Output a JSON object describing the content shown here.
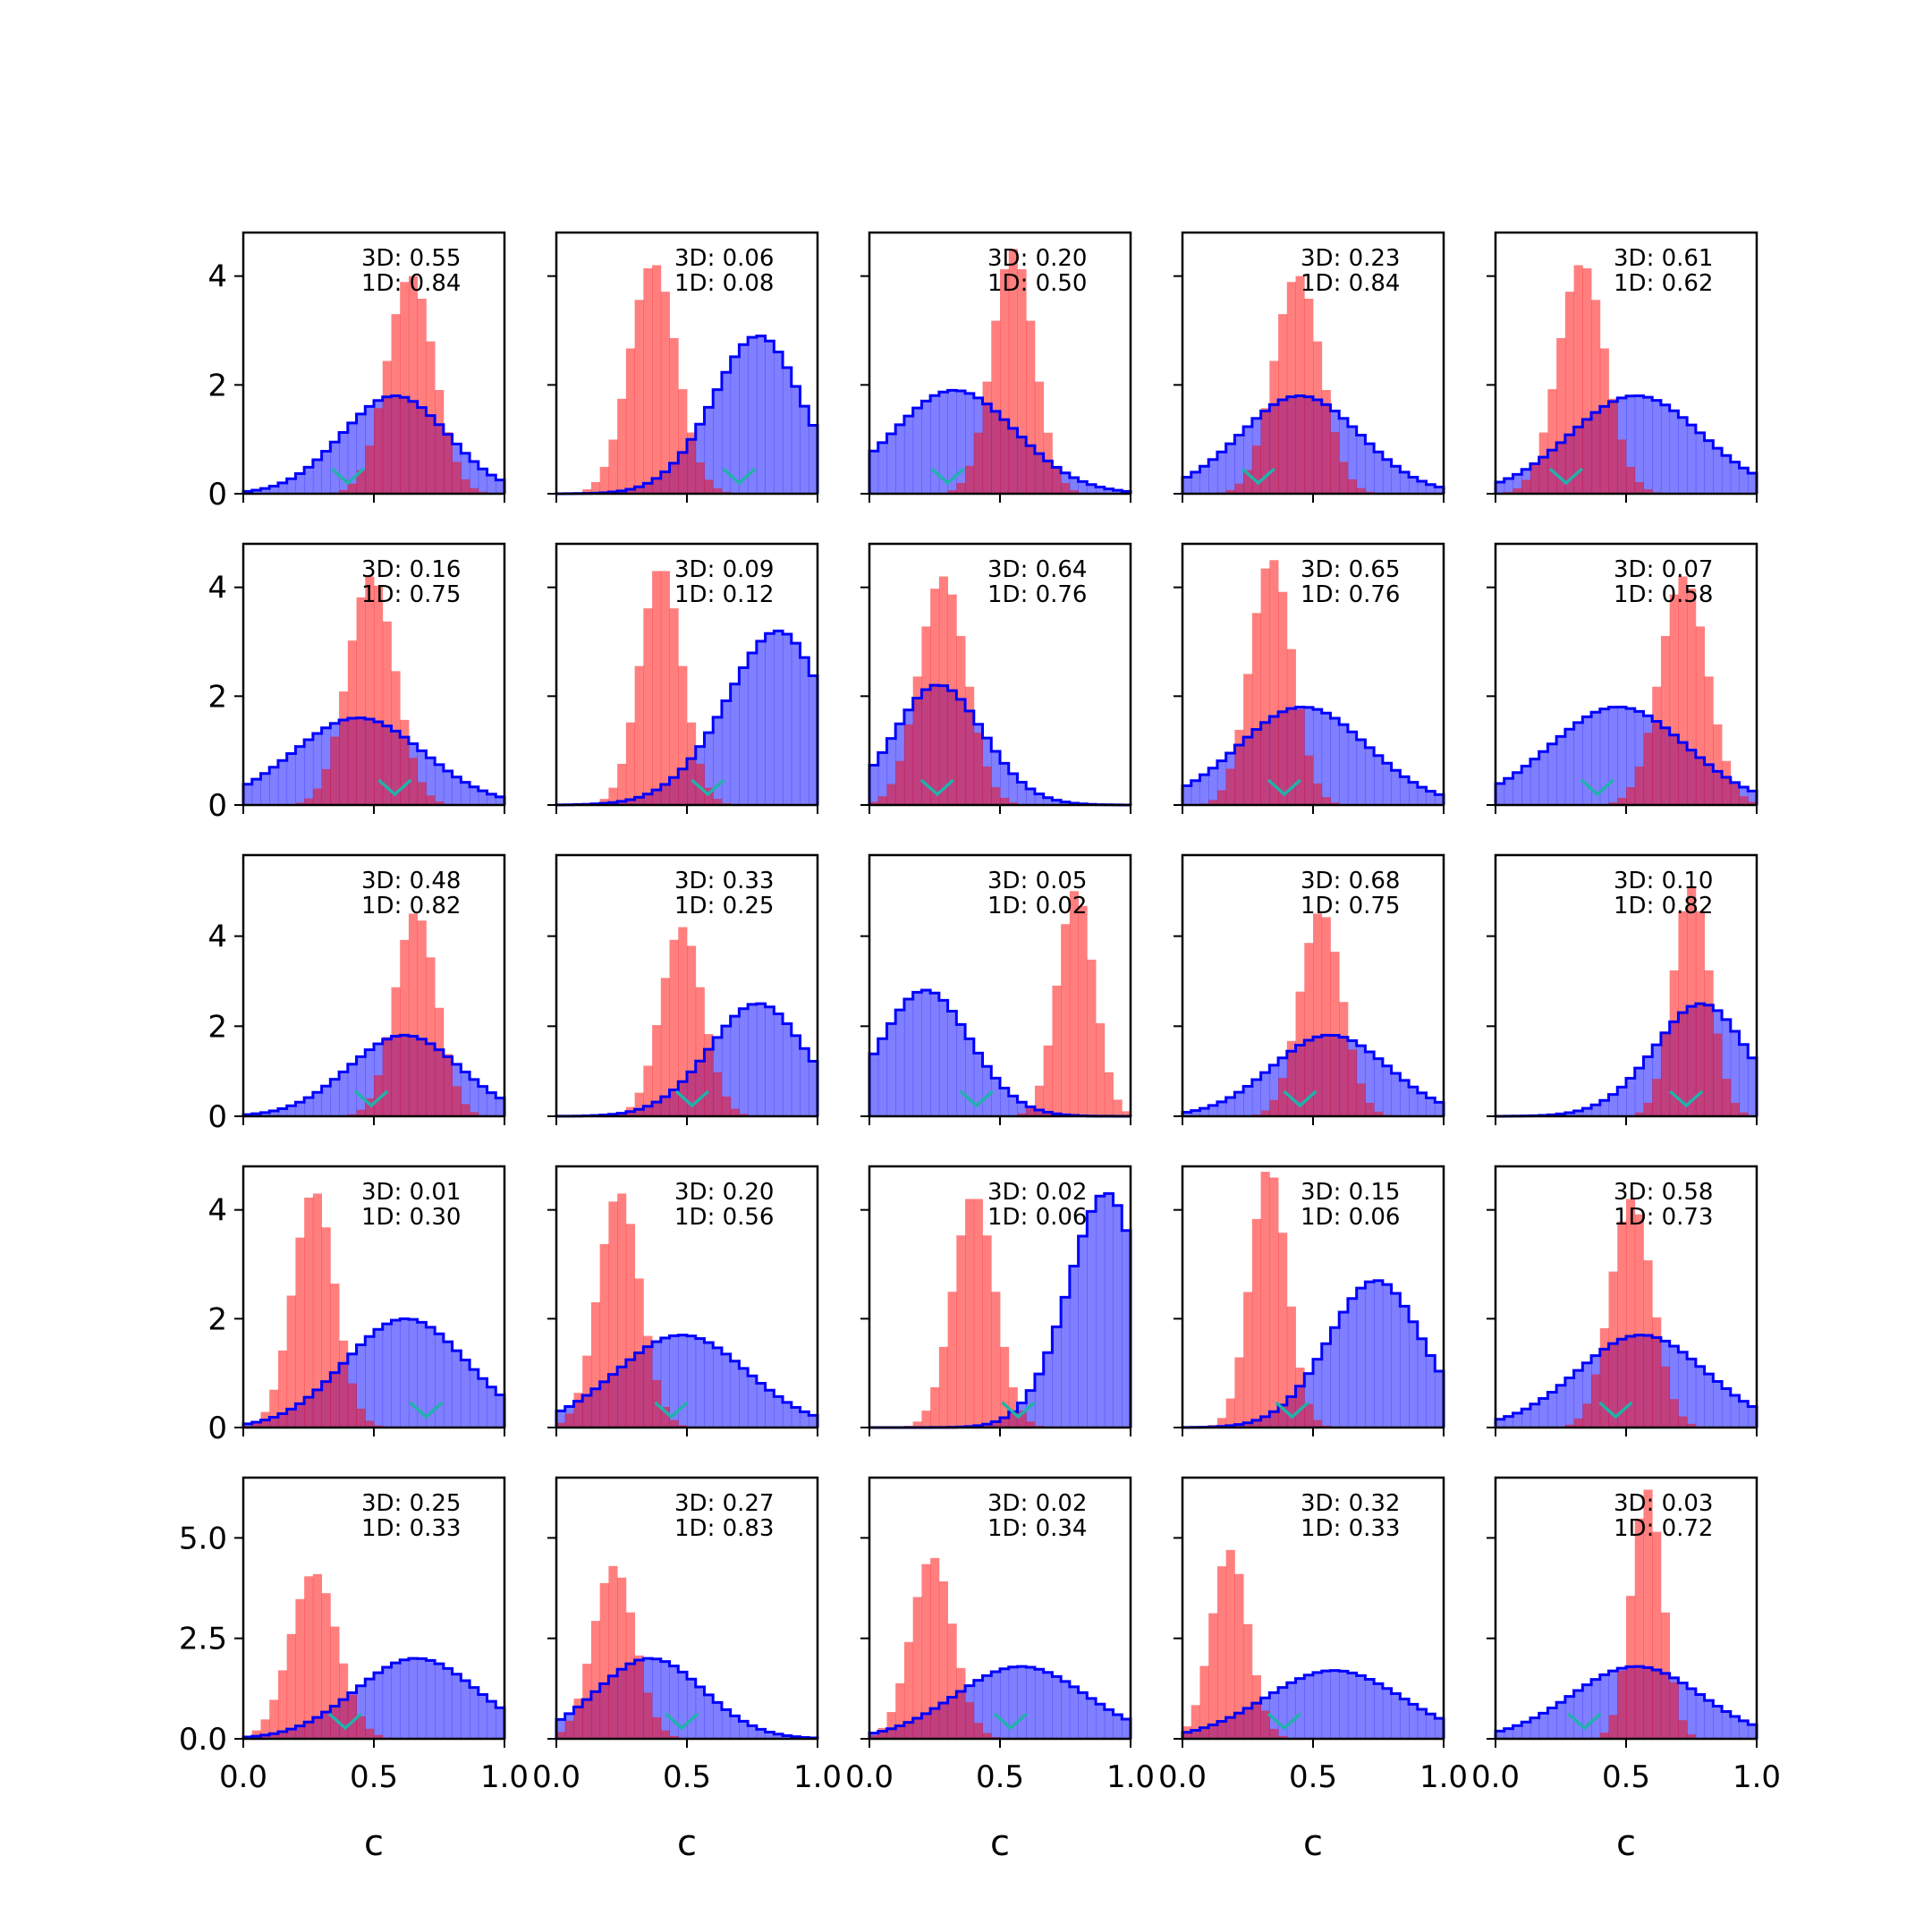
{
  "figure": {
    "background": "#ffffff",
    "colors": {
      "wide": "#0000ff",
      "narrow": "#ff0000",
      "marker": "#20b2aa"
    },
    "xlabel": "c"
  },
  "chart_data": {
    "type": "histogram-grid",
    "rows": 5,
    "cols": 5,
    "x_range": [
      0.0,
      1.0
    ],
    "x_ticks": [
      "0.0",
      "0.5",
      "1.0"
    ],
    "y_axes": [
      {
        "row": 0,
        "ylim": [
          0,
          4.8
        ],
        "ticks": [
          0,
          2,
          4
        ],
        "tick_labels": [
          "0",
          "2",
          "4"
        ]
      },
      {
        "row": 1,
        "ylim": [
          0,
          4.8
        ],
        "ticks": [
          0,
          2,
          4
        ],
        "tick_labels": [
          "0",
          "2",
          "4"
        ]
      },
      {
        "row": 2,
        "ylim": [
          0,
          5.8
        ],
        "ticks": [
          0,
          2,
          4
        ],
        "tick_labels": [
          "0",
          "2",
          "4"
        ]
      },
      {
        "row": 3,
        "ylim": [
          0,
          4.8
        ],
        "ticks": [
          0,
          2,
          4
        ],
        "tick_labels": [
          "0",
          "2",
          "4"
        ]
      },
      {
        "row": 4,
        "ylim": [
          0,
          6.5
        ],
        "ticks": [
          0,
          2.5,
          5.0
        ],
        "tick_labels": [
          "0.0",
          "2.5",
          "5.0"
        ]
      }
    ],
    "panels": [
      {
        "row": 0,
        "col": 0,
        "label_3d": "3D: 0.55",
        "label_1d": "1D: 0.84",
        "wide": {
          "mean": 0.66,
          "sd": 0.22,
          "peak": 1.8,
          "skew": -0.5
        },
        "narrow": {
          "mean": 0.64,
          "sd": 0.09,
          "peak": 4.0
        },
        "marker_x": 0.4
      },
      {
        "row": 0,
        "col": 1,
        "label_3d": "3D: 0.06",
        "label_1d": "1D: 0.08",
        "wide": {
          "mean": 0.88,
          "sd": 0.21,
          "peak": 2.9,
          "skew": -1.0
        },
        "narrow": {
          "mean": 0.37,
          "sd": 0.09,
          "peak": 4.2
        },
        "marker_x": 0.7
      },
      {
        "row": 0,
        "col": 2,
        "label_3d": "3D: 0.20",
        "label_1d": "1D: 0.50",
        "wide": {
          "mean": 0.22,
          "sd": 0.26,
          "peak": 1.9,
          "skew": 0.6
        },
        "narrow": {
          "mean": 0.55,
          "sd": 0.08,
          "peak": 4.5
        },
        "marker_x": 0.3
      },
      {
        "row": 0,
        "col": 3,
        "label_3d": "3D: 0.23",
        "label_1d": "1D: 0.84",
        "wide": {
          "mean": 0.45,
          "sd": 0.23,
          "peak": 1.8,
          "skew": 0.0
        },
        "narrow": {
          "mean": 0.44,
          "sd": 0.09,
          "peak": 4.0
        },
        "marker_x": 0.29
      },
      {
        "row": 0,
        "col": 4,
        "label_3d": "3D: 0.61",
        "label_1d": "1D: 0.62",
        "wide": {
          "mean": 0.6,
          "sd": 0.26,
          "peak": 1.8,
          "skew": -0.3
        },
        "narrow": {
          "mean": 0.33,
          "sd": 0.09,
          "peak": 4.2
        },
        "marker_x": 0.27
      },
      {
        "row": 1,
        "col": 0,
        "label_3d": "3D: 0.16",
        "label_1d": "1D: 0.75",
        "wide": {
          "mean": 0.44,
          "sd": 0.25,
          "peak": 1.6,
          "skew": 0.0
        },
        "narrow": {
          "mean": 0.49,
          "sd": 0.09,
          "peak": 4.2
        },
        "marker_x": 0.58
      },
      {
        "row": 1,
        "col": 1,
        "label_3d": "3D: 0.09",
        "label_1d": "1D: 0.12",
        "wide": {
          "mean": 0.98,
          "sd": 0.25,
          "peak": 3.2,
          "skew": -1.3
        },
        "narrow": {
          "mean": 0.4,
          "sd": 0.08,
          "peak": 4.3
        },
        "marker_x": 0.58
      },
      {
        "row": 1,
        "col": 2,
        "label_3d": "3D: 0.64",
        "label_1d": "1D: 0.76",
        "wide": {
          "mean": 0.17,
          "sd": 0.2,
          "peak": 2.2,
          "skew": 0.8
        },
        "narrow": {
          "mean": 0.28,
          "sd": 0.09,
          "peak": 4.2
        },
        "marker_x": 0.26
      },
      {
        "row": 1,
        "col": 3,
        "label_3d": "3D: 0.65",
        "label_1d": "1D: 0.76",
        "wide": {
          "mean": 0.42,
          "sd": 0.25,
          "peak": 1.8,
          "skew": 0.2
        },
        "narrow": {
          "mean": 0.34,
          "sd": 0.08,
          "peak": 4.5
        },
        "marker_x": 0.39
      },
      {
        "row": 1,
        "col": 4,
        "label_3d": "3D: 0.07",
        "label_1d": "1D: 0.58",
        "wide": {
          "mean": 0.47,
          "sd": 0.26,
          "peak": 1.8,
          "skew": 0.0
        },
        "narrow": {
          "mean": 0.72,
          "sd": 0.09,
          "peak": 4.2
        },
        "marker_x": 0.39
      },
      {
        "row": 2,
        "col": 0,
        "label_3d": "3D: 0.48",
        "label_1d": "1D: 0.82",
        "wide": {
          "mean": 0.7,
          "sd": 0.23,
          "peak": 1.8,
          "skew": -0.5
        },
        "narrow": {
          "mean": 0.66,
          "sd": 0.08,
          "peak": 4.5
        },
        "marker_x": 0.49
      },
      {
        "row": 2,
        "col": 1,
        "label_3d": "3D: 0.33",
        "label_1d": "1D: 0.25",
        "wide": {
          "mean": 0.88,
          "sd": 0.22,
          "peak": 2.5,
          "skew": -0.9
        },
        "narrow": {
          "mean": 0.48,
          "sd": 0.08,
          "peak": 4.2
        },
        "marker_x": 0.52
      },
      {
        "row": 2,
        "col": 2,
        "label_3d": "3D: 0.05",
        "label_1d": "1D: 0.02",
        "wide": {
          "mean": 0.12,
          "sd": 0.2,
          "peak": 2.8,
          "skew": 0.8
        },
        "narrow": {
          "mean": 0.79,
          "sd": 0.07,
          "peak": 5.0
        },
        "marker_x": 0.41
      },
      {
        "row": 2,
        "col": 3,
        "label_3d": "3D: 0.68",
        "label_1d": "1D: 0.75",
        "wide": {
          "mean": 0.62,
          "sd": 0.23,
          "peak": 1.8,
          "skew": -0.3
        },
        "narrow": {
          "mean": 0.53,
          "sd": 0.08,
          "peak": 4.5
        },
        "marker_x": 0.45
      },
      {
        "row": 2,
        "col": 4,
        "label_3d": "3D: 0.10",
        "label_1d": "1D: 0.82",
        "wide": {
          "mean": 0.9,
          "sd": 0.22,
          "peak": 2.5,
          "skew": -1.0
        },
        "narrow": {
          "mean": 0.75,
          "sd": 0.07,
          "peak": 5.1
        },
        "marker_x": 0.73
      },
      {
        "row": 3,
        "col": 0,
        "label_3d": "3D: 0.01",
        "label_1d": "1D: 0.30",
        "wide": {
          "mean": 0.68,
          "sd": 0.24,
          "peak": 2.0,
          "skew": -0.3
        },
        "narrow": {
          "mean": 0.27,
          "sd": 0.08,
          "peak": 4.3
        },
        "marker_x": 0.7
      },
      {
        "row": 3,
        "col": 1,
        "label_3d": "3D: 0.20",
        "label_1d": "1D: 0.56",
        "wide": {
          "mean": 0.48,
          "sd": 0.25,
          "peak": 1.7,
          "skew": 0.0
        },
        "narrow": {
          "mean": 0.24,
          "sd": 0.08,
          "peak": 4.3
        },
        "marker_x": 0.44
      },
      {
        "row": 3,
        "col": 2,
        "label_3d": "3D: 0.02",
        "label_1d": "1D: 0.06",
        "wide": {
          "mean": 1.0,
          "sd": 0.18,
          "peak": 4.3,
          "skew": -1.2
        },
        "narrow": {
          "mean": 0.4,
          "sd": 0.08,
          "peak": 4.2
        },
        "marker_x": 0.57
      },
      {
        "row": 3,
        "col": 3,
        "label_3d": "3D: 0.15",
        "label_1d": "1D: 0.06",
        "wide": {
          "mean": 0.84,
          "sd": 0.21,
          "peak": 2.7,
          "skew": -0.8
        },
        "narrow": {
          "mean": 0.33,
          "sd": 0.07,
          "peak": 4.7
        },
        "marker_x": 0.42
      },
      {
        "row": 3,
        "col": 4,
        "label_3d": "3D: 0.58",
        "label_1d": "1D: 0.73",
        "wide": {
          "mean": 0.6,
          "sd": 0.25,
          "peak": 1.7,
          "skew": -0.2
        },
        "narrow": {
          "mean": 0.52,
          "sd": 0.08,
          "peak": 4.2
        },
        "marker_x": 0.46
      },
      {
        "row": 4,
        "col": 0,
        "label_3d": "3D: 0.25",
        "label_1d": "1D: 0.33",
        "wide": {
          "mean": 0.72,
          "sd": 0.24,
          "peak": 2.0,
          "skew": -0.3
        },
        "narrow": {
          "mean": 0.27,
          "sd": 0.09,
          "peak": 4.1
        },
        "marker_x": 0.39
      },
      {
        "row": 4,
        "col": 1,
        "label_3d": "3D: 0.27",
        "label_1d": "1D: 0.83",
        "wide": {
          "mean": 0.28,
          "sd": 0.22,
          "peak": 2.0,
          "skew": 0.5
        },
        "narrow": {
          "mean": 0.22,
          "sd": 0.08,
          "peak": 4.3
        },
        "marker_x": 0.48
      },
      {
        "row": 4,
        "col": 2,
        "label_3d": "3D: 0.02",
        "label_1d": "1D: 0.34",
        "wide": {
          "mean": 0.58,
          "sd": 0.25,
          "peak": 1.8,
          "skew": 0.0
        },
        "narrow": {
          "mean": 0.24,
          "sd": 0.08,
          "peak": 4.5
        },
        "marker_x": 0.54
      },
      {
        "row": 4,
        "col": 3,
        "label_3d": "3D: 0.32",
        "label_1d": "1D: 0.33",
        "wide": {
          "mean": 0.58,
          "sd": 0.26,
          "peak": 1.7,
          "skew": 0.0
        },
        "narrow": {
          "mean": 0.18,
          "sd": 0.07,
          "peak": 4.7
        },
        "marker_x": 0.39
      },
      {
        "row": 4,
        "col": 4,
        "label_3d": "3D: 0.03",
        "label_1d": "1D: 0.72",
        "wide": {
          "mean": 0.58,
          "sd": 0.25,
          "peak": 1.8,
          "skew": -0.2
        },
        "narrow": {
          "mean": 0.58,
          "sd": 0.06,
          "peak": 6.2
        },
        "marker_x": 0.34
      }
    ]
  }
}
